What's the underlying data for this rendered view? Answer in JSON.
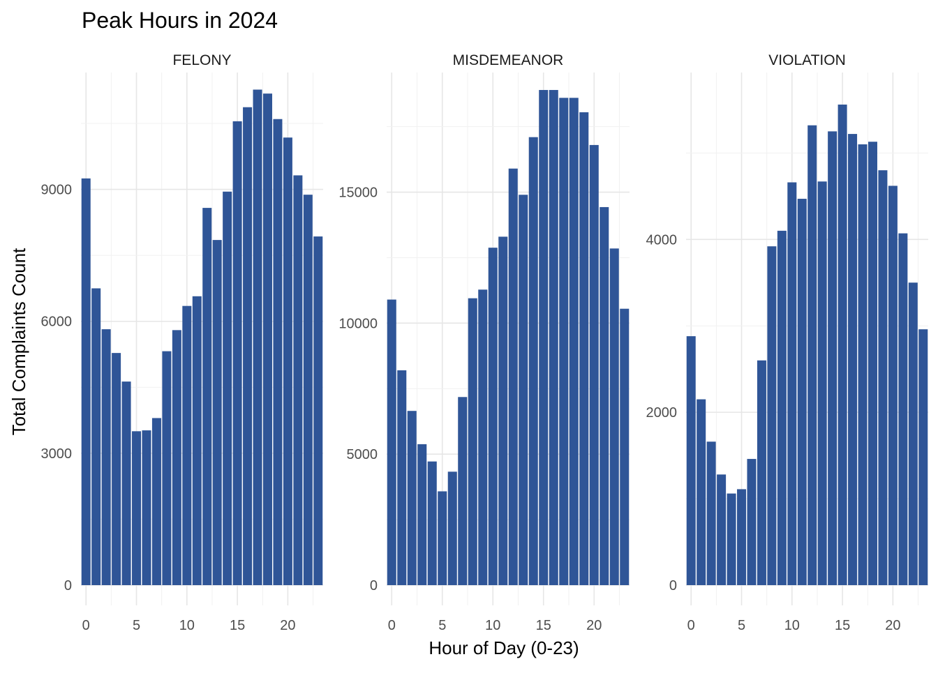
{
  "chart_data": {
    "type": "bar",
    "title": "Peak Hours in 2024",
    "xlabel": "Hour of Day (0-23)",
    "ylabel": "Total Complaints Count",
    "bar_color": "#2F5597",
    "grid": true,
    "x": [
      0,
      1,
      2,
      3,
      4,
      5,
      6,
      7,
      8,
      9,
      10,
      11,
      12,
      13,
      14,
      15,
      16,
      17,
      18,
      19,
      20,
      21,
      22,
      23
    ],
    "x_ticks": [
      "0",
      "5",
      "10",
      "15",
      "20"
    ],
    "xlim": [
      -0.5,
      23.5
    ],
    "panels": [
      {
        "name": "FELONY",
        "ylim": [
          0,
          11500
        ],
        "y_ticks": [
          "0",
          "3000",
          "6000",
          "9000"
        ],
        "values": [
          9250,
          6750,
          5820,
          5280,
          4630,
          3500,
          3520,
          3800,
          5320,
          5800,
          6350,
          6570,
          8580,
          7850,
          8950,
          10550,
          10870,
          11270,
          11180,
          10600,
          10180,
          9320,
          8880,
          7930
        ]
      },
      {
        "name": "MISDEMEANOR",
        "ylim": [
          0,
          19300
        ],
        "y_ticks": [
          "0",
          "5000",
          "10000",
          "15000"
        ],
        "values": [
          10900,
          8200,
          6650,
          5380,
          4720,
          3580,
          4330,
          7180,
          10950,
          11280,
          12880,
          13300,
          15900,
          14900,
          17100,
          18900,
          18900,
          18600,
          18600,
          18050,
          16800,
          14430,
          12850,
          10550
        ]
      },
      {
        "name": "VIOLATION",
        "ylim": [
          0,
          5850
        ],
        "y_ticks": [
          "0",
          "2000",
          "4000"
        ],
        "values": [
          2880,
          2150,
          1660,
          1280,
          1060,
          1110,
          1460,
          2600,
          3920,
          4100,
          4660,
          4470,
          5320,
          4670,
          5250,
          5560,
          5220,
          5100,
          5130,
          4800,
          4620,
          4070,
          3500,
          2960
        ]
      }
    ]
  }
}
